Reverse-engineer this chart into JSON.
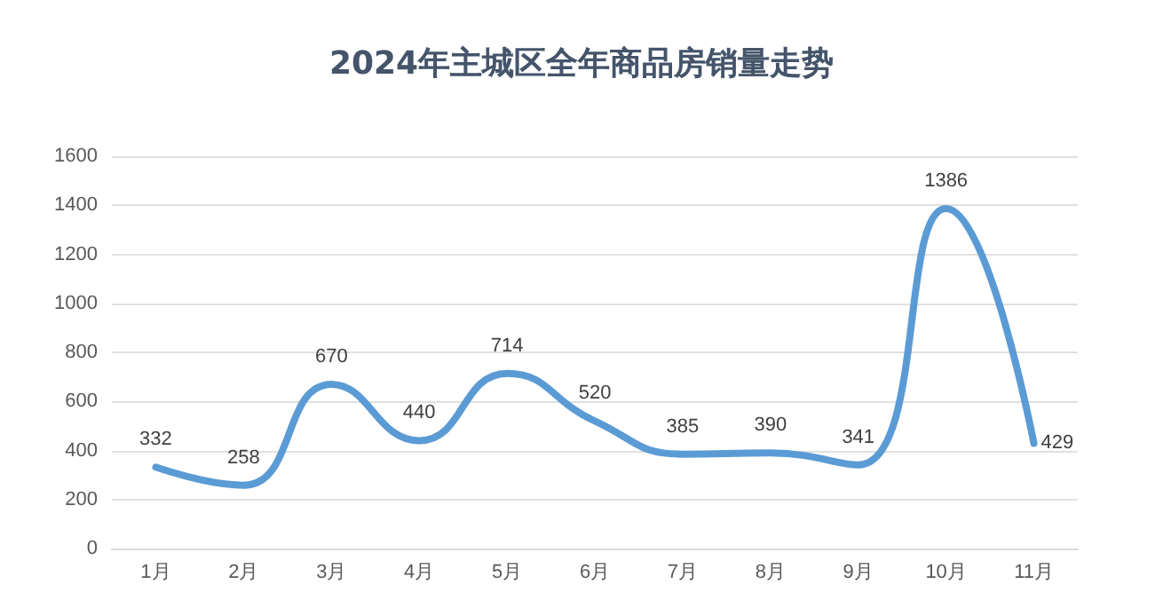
{
  "chart_data": {
    "type": "line",
    "title": "2024年主城区全年商品房销量走势",
    "categories": [
      "1月",
      "2月",
      "3月",
      "4月",
      "5月",
      "6月",
      "7月",
      "8月",
      "9月",
      "10月",
      "11月"
    ],
    "series": [
      {
        "color": "#5b9bd5",
        "values": [
          332,
          258,
          670,
          440,
          714,
          520,
          385,
          390,
          341,
          1386,
          429
        ]
      }
    ],
    "ylim": [
      0,
      1600
    ],
    "yticks": [
      0,
      200,
      400,
      600,
      800,
      1000,
      1200,
      1400,
      1600
    ],
    "grid": "y",
    "marker": "none",
    "line_style": "solid",
    "data_labels": true
  }
}
